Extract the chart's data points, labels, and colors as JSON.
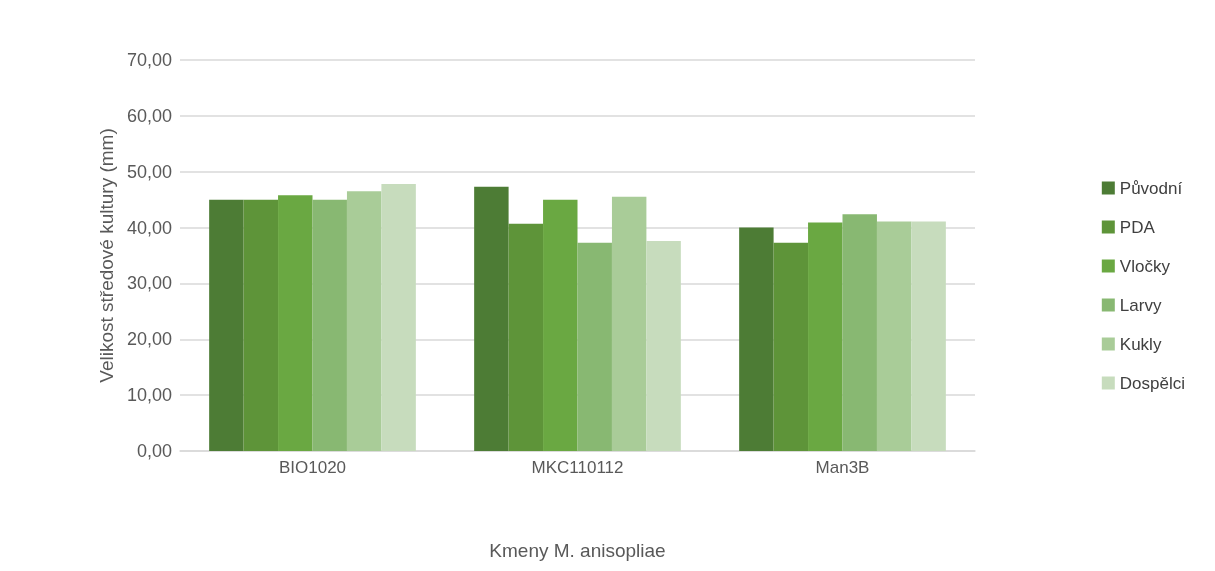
{
  "chart_data": {
    "type": "bar",
    "xlabel": "Kmeny M. anisopliae",
    "ylabel": "Velikost středové kultury (mm)",
    "categories": [
      "BIO1020",
      "MKC110112",
      "Man3B"
    ],
    "series": [
      {
        "name": "Původní",
        "color": "#4d7c35",
        "values": [
          45,
          47.3,
          40
        ]
      },
      {
        "name": "PDA",
        "color": "#5e9439",
        "values": [
          45,
          40.7,
          37.3
        ]
      },
      {
        "name": "Vločky",
        "color": "#6aa842",
        "values": [
          45.8,
          45,
          40.9
        ]
      },
      {
        "name": "Larvy",
        "color": "#88b872",
        "values": [
          45,
          37.3,
          42.4
        ]
      },
      {
        "name": "Kukly",
        "color": "#a9cc98",
        "values": [
          46.5,
          45.5,
          41.1
        ]
      },
      {
        "name": "Dospělci",
        "color": "#c7dcbd",
        "values": [
          47.8,
          37.6,
          41.1
        ]
      }
    ],
    "ylim": [
      0,
      70
    ],
    "yticks": [
      {
        "value": 0,
        "label": "0,00"
      },
      {
        "value": 10,
        "label": "10,00"
      },
      {
        "value": 20,
        "label": "20,00"
      },
      {
        "value": 30,
        "label": "30,00"
      },
      {
        "value": 40,
        "label": "40,00"
      },
      {
        "value": 50,
        "label": "50,00"
      },
      {
        "value": 60,
        "label": "60,00"
      },
      {
        "value": 70,
        "label": "70,00"
      }
    ],
    "grid": "y",
    "legend": "right"
  }
}
